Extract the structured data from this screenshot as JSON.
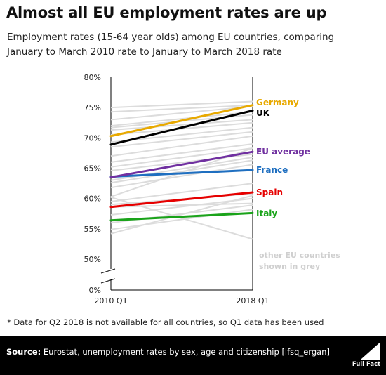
{
  "title": "Almost all EU employment rates are up",
  "subtitle_line1": "Employment rates (15-64 year olds) among EU countries, comparing",
  "subtitle_line2": "January to March 2010 rate to January to March 2018 rate",
  "footnote": "* Data for Q2 2018 is not available for all countries, so Q1 data has been used",
  "footer": {
    "source_label": "Source:",
    "source_text": " Eurostat, unemployment rates by sex, age and citizenship [lfsq_ergan]",
    "logo_text": "Full Fact"
  },
  "chart_data": {
    "type": "line",
    "title": "Almost all EU employment rates are up",
    "x": [
      "2010 Q1",
      "2018 Q1"
    ],
    "ylim": [
      0,
      80
    ],
    "y_ticks": [
      "0%",
      "50%",
      "55%",
      "60%",
      "65%",
      "70%",
      "75%",
      "80%"
    ],
    "axis_break": "between 0% and 50%",
    "grid": false,
    "series": [
      {
        "name": "Germany",
        "values": [
          70.3,
          75.4
        ],
        "color": "#e8a900"
      },
      {
        "name": "UK",
        "values": [
          68.9,
          74.5
        ],
        "color": "#000000"
      },
      {
        "name": "EU average",
        "values": [
          63.5,
          67.7
        ],
        "color": "#7030a0"
      },
      {
        "name": "France",
        "values": [
          63.6,
          64.7
        ],
        "color": "#1f6fc0"
      },
      {
        "name": "Spain",
        "values": [
          58.6,
          61.0
        ],
        "color": "#e60000"
      },
      {
        "name": "Italy",
        "values": [
          56.4,
          57.6
        ],
        "color": "#1aa31a"
      }
    ],
    "background_series": [
      [
        75.0,
        76.0
      ],
      [
        74.3,
        75.4
      ],
      [
        73.0,
        75.2
      ],
      [
        72.0,
        74.3
      ],
      [
        71.7,
        73.8
      ],
      [
        71.3,
        73.0
      ],
      [
        70.5,
        72.5
      ],
      [
        69.3,
        71.7
      ],
      [
        68.5,
        71.0
      ],
      [
        67.0,
        70.3
      ],
      [
        66.0,
        69.0
      ],
      [
        65.2,
        68.3
      ],
      [
        64.6,
        67.3
      ],
      [
        63.0,
        66.8
      ],
      [
        62.6,
        66.3
      ],
      [
        61.8,
        65.6
      ],
      [
        60.3,
        68.3
      ],
      [
        59.5,
        62.5
      ],
      [
        59.0,
        60.8
      ],
      [
        58.6,
        59.2
      ],
      [
        57.3,
        60.0
      ],
      [
        56.0,
        58.9
      ],
      [
        54.9,
        58.2
      ],
      [
        54.2,
        60.5
      ],
      [
        60.2,
        53.3
      ]
    ],
    "background_color": "#dcdcdc",
    "annotation": "other EU countries shown in grey"
  }
}
